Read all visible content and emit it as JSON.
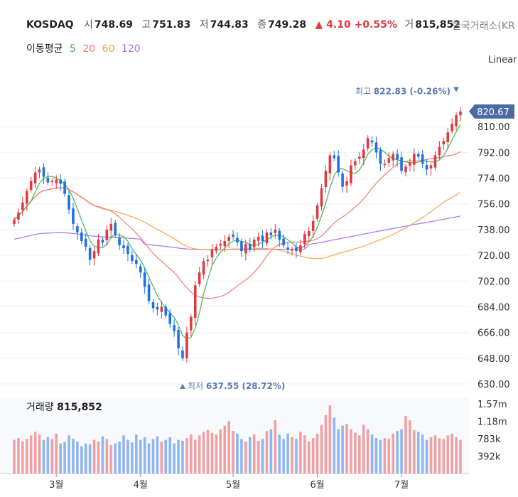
{
  "header": {
    "symbol": "KOSDAQ",
    "open_label": "시",
    "open": "748.69",
    "high_label": "고",
    "high": "751.83",
    "low_label": "저",
    "low": "744.83",
    "close_label": "종",
    "close": "749.28",
    "change": "▲ 4.10 +0.55%",
    "volume_label": "거",
    "volume": "815,852",
    "exchange": "한국거래소(KR"
  },
  "ma_legend": {
    "label": "이동평균",
    "items": [
      {
        "name": "5",
        "color": "#3db14a"
      },
      {
        "name": "20",
        "color": "#f0776f"
      },
      {
        "name": "60",
        "color": "#f4a442"
      },
      {
        "name": "120",
        "color": "#a56ef0"
      }
    ]
  },
  "scale_mode": "Linear",
  "chart_data": {
    "type": "candlestick",
    "ylim": [
      630,
      830
    ],
    "yticks": [
      "630.00",
      "648.00",
      "666.00",
      "684.00",
      "702.00",
      "720.00",
      "738.00",
      "756.00",
      "774.00",
      "792.00",
      "810.00"
    ],
    "xticks": [
      {
        "label": "3월",
        "index": 10
      },
      {
        "label": "4월",
        "index": 30
      },
      {
        "label": "5월",
        "index": 52
      },
      {
        "label": "6월",
        "index": 72
      },
      {
        "label": "7월",
        "index": 92
      }
    ],
    "last_price": "820.67",
    "last_value": 820.67,
    "high_annotation": {
      "label": "최고",
      "text": "822.83 (-0.26%)",
      "value": 822.83,
      "index": 106
    },
    "low_annotation": {
      "label": "최저",
      "text": "637.55 (28.72%)",
      "value": 637.55,
      "index": 39
    },
    "up_color": "#e0393e",
    "down_color": "#1e6fe6",
    "ma_colors": {
      "ma5": "#3db14a",
      "ma20": "#f0776f",
      "ma60": "#f4a442",
      "ma120": "#a56ef0"
    },
    "closes": [
      745,
      750,
      757,
      765,
      772,
      778,
      780,
      775,
      771,
      772,
      773,
      770,
      763,
      752,
      742,
      736,
      730,
      726,
      717,
      723,
      731,
      729,
      738,
      742,
      734,
      727,
      725,
      721,
      716,
      714,
      708,
      698,
      688,
      683,
      682,
      684,
      678,
      672,
      667,
      655,
      648,
      666,
      677,
      699,
      708,
      716,
      717,
      724,
      726,
      728,
      730,
      733,
      733,
      729,
      723,
      728,
      724,
      731,
      733,
      730,
      736,
      734,
      738,
      731,
      727,
      724,
      724,
      723,
      727,
      735,
      737,
      744,
      755,
      767,
      779,
      790,
      788,
      778,
      768,
      772,
      783,
      786,
      789,
      794,
      802,
      799,
      792,
      784,
      784,
      788,
      791,
      787,
      779,
      782,
      785,
      791,
      789,
      784,
      780,
      783,
      790,
      796,
      800,
      806,
      812,
      818,
      820.67
    ],
    "vol_title": "거래량",
    "vol_value": "815,852",
    "vol_ticks": [
      {
        "label": "1.57m",
        "value": 1570000
      },
      {
        "label": "1.18m",
        "value": 1180000
      },
      {
        "label": "783k",
        "value": 783000
      },
      {
        "label": "392k",
        "value": 392000
      }
    ],
    "volumes": [
      760,
      800,
      720,
      780,
      860,
      940,
      880,
      760,
      820,
      780,
      900,
      680,
      720,
      860,
      780,
      720,
      620,
      680,
      660,
      760,
      720,
      840,
      780,
      640,
      680,
      720,
      860,
      760,
      700,
      880,
      760,
      820,
      680,
      780,
      840,
      720,
      760,
      820,
      680,
      760,
      740,
      800,
      880,
      760,
      860,
      940,
      980,
      920,
      880,
      1000,
      1080,
      1180,
      960,
      900,
      780,
      720,
      820,
      880,
      740,
      780,
      960,
      1000,
      1200,
      880,
      780,
      900,
      820,
      780,
      940,
      860,
      720,
      800,
      900,
      1100,
      1320,
      1540,
      1260,
      1000,
      1080,
      1120,
      1000,
      920,
      860,
      1100,
      1000,
      880,
      800,
      760,
      800,
      780,
      900,
      960,
      1000,
      1300,
      1200,
      980,
      940,
      880,
      760,
      820,
      860,
      800,
      780,
      860,
      900,
      820,
      760
    ],
    "vol_max": 1700
  }
}
